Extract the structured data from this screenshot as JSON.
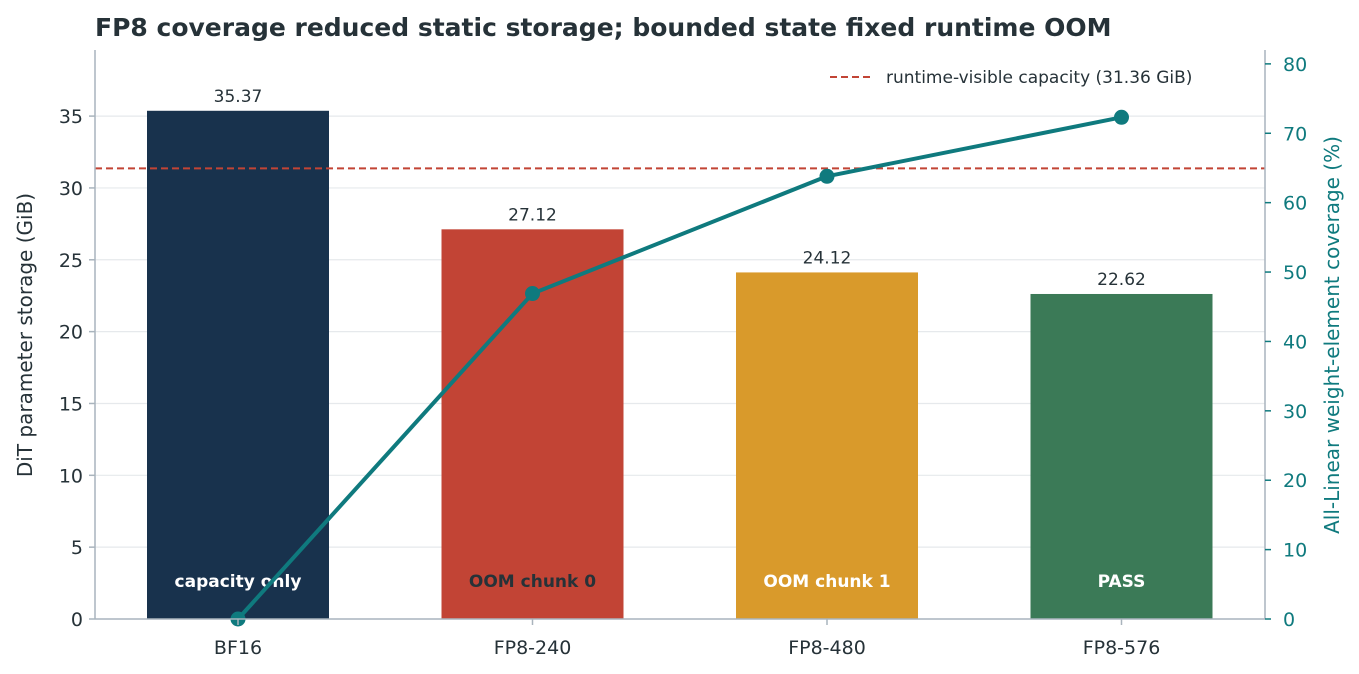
{
  "chart_data": {
    "type": "bar",
    "title": "FP8 coverage reduced static storage; bounded state fixed runtime OOM",
    "categories": [
      "BF16",
      "FP8-240",
      "FP8-480",
      "FP8-576"
    ],
    "ylabel": "DiT parameter storage (GiB)",
    "y2label": "All-Linear weight-element coverage (%)",
    "ylim": [
      0,
      39.6
    ],
    "y2lim": [
      0,
      82
    ],
    "yticks": [
      "0",
      "5",
      "10",
      "15",
      "20",
      "25",
      "30",
      "35"
    ],
    "y2ticks": [
      "0",
      "10",
      "20",
      "30",
      "40",
      "50",
      "60",
      "70",
      "80"
    ],
    "grid": "horizontal",
    "bars": {
      "values": [
        35.37,
        27.12,
        24.12,
        22.62
      ],
      "value_labels": [
        "35.37",
        "27.12",
        "24.12",
        "22.62"
      ],
      "status_labels": [
        "capacity only",
        "OOM chunk 0",
        "OOM chunk 1",
        "PASS"
      ],
      "colors": [
        "#18324d",
        "#c24435",
        "#d99a2b",
        "#3b7a57"
      ],
      "status_text_colors": [
        "#ffffff",
        "#263238",
        "#ffffff",
        "#ffffff"
      ]
    },
    "line": {
      "axis": "right",
      "values": [
        0,
        46.9,
        63.8,
        72.3
      ],
      "color": "#0f7a7e"
    },
    "reference_line": {
      "value": 31.36,
      "label": "runtime-visible capacity (31.36 GiB)",
      "color": "#c24435",
      "style": "dashed"
    },
    "legend_position": "top-right"
  }
}
